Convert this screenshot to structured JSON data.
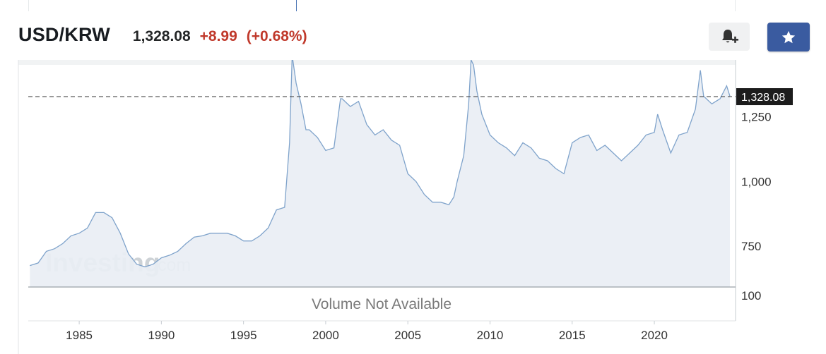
{
  "header": {
    "symbol": "USD/KRW",
    "last_price": "1,328.08",
    "change": "+8.99",
    "change_pct": "(+0.68%)"
  },
  "buttons": {
    "alert_icon": "bell-plus-icon",
    "watchlist_icon": "star-icon"
  },
  "colors": {
    "accent": "#3a5ba0",
    "negative": "#c0392b",
    "line": "#7fa3cb",
    "area": "#e9eef4",
    "price_tag": "#1c1c1c"
  },
  "watermark": {
    "main": "Investing",
    "sub": ".com"
  },
  "volume_label": "Volume Not Available",
  "chart_data": {
    "type": "area",
    "series": [
      {
        "x": [
          1982,
          1982.5,
          1983,
          1983.5,
          1984,
          1984.5,
          1985,
          1985.5,
          1986,
          1986.5,
          1987,
          1987.5,
          1988,
          1988.5,
          1989,
          1989.5,
          1990,
          1990.5,
          1991,
          1991.5,
          1992,
          1992.5,
          1993,
          1993.5,
          1994,
          1994.5,
          1995,
          1995.5,
          1996,
          1996.5,
          1997,
          1997.5,
          1997.8,
          1997.95,
          1998.0,
          1998.2,
          1998.5,
          1998.8,
          1999,
          1999.5,
          2000,
          2000.5,
          2000.9,
          2001,
          2001.5,
          2002,
          2002.5,
          2003,
          2003.5,
          2004,
          2004.5,
          2005,
          2005.5,
          2006,
          2006.5,
          2007,
          2007.5,
          2007.8,
          2008,
          2008.4,
          2008.7,
          2008.85,
          2009.0,
          2009.2,
          2009.5,
          2010,
          2010.5,
          2011,
          2011.5,
          2012,
          2012.5,
          2013,
          2013.5,
          2014,
          2014.5,
          2015,
          2015.5,
          2016,
          2016.5,
          2017,
          2017.5,
          2018,
          2018.5,
          2019,
          2019.5,
          2020,
          2020.2,
          2020.5,
          2021,
          2021.5,
          2022,
          2022.5,
          2022.8,
          2023,
          2023.5,
          2024,
          2024.4,
          2024.6
        ],
        "y": [
          675,
          685,
          730,
          740,
          760,
          790,
          800,
          820,
          880,
          880,
          860,
          800,
          720,
          680,
          670,
          680,
          705,
          715,
          730,
          760,
          785,
          790,
          800,
          800,
          800,
          790,
          770,
          770,
          790,
          820,
          890,
          900,
          1150,
          1500,
          1550,
          1380,
          1300,
          1200,
          1200,
          1170,
          1120,
          1130,
          1320,
          1320,
          1290,
          1310,
          1220,
          1180,
          1200,
          1160,
          1140,
          1030,
          1000,
          950,
          920,
          920,
          910,
          940,
          1000,
          1100,
          1300,
          1480,
          1450,
          1350,
          1260,
          1180,
          1150,
          1130,
          1100,
          1150,
          1130,
          1090,
          1080,
          1050,
          1030,
          1150,
          1170,
          1180,
          1120,
          1140,
          1110,
          1080,
          1110,
          1140,
          1180,
          1190,
          1260,
          1200,
          1110,
          1180,
          1190,
          1280,
          1430,
          1330,
          1300,
          1320,
          1370,
          1330
        ]
      }
    ],
    "title": "",
    "xlabel": "",
    "ylabel": "",
    "last_value": "1,328.08",
    "y_ticks": [
      750,
      1000,
      1250
    ],
    "y_tick_labels": [
      "750",
      "1,000",
      "1,250"
    ],
    "y_range": [
      592,
      1470
    ],
    "volume_y_tick": "100",
    "x_range": [
      1981.9,
      2024.9
    ],
    "x_ticks": [
      1985,
      1990,
      1995,
      2000,
      2005,
      2010,
      2015,
      2020
    ],
    "x_tick_labels": [
      "1985",
      "1990",
      "1995",
      "2000",
      "2005",
      "2010",
      "2015",
      "2020"
    ],
    "grid": false,
    "legend": "none"
  }
}
